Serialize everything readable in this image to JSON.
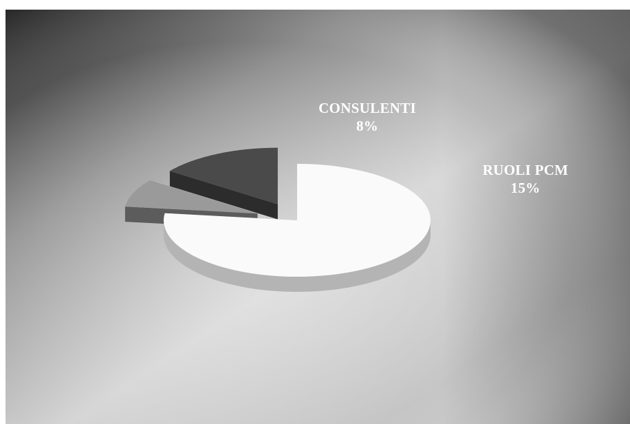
{
  "chart_data": {
    "type": "pie",
    "style": "3d-exploded",
    "slices": [
      {
        "name": "",
        "value": 77,
        "color": "#fafafa",
        "exploded": false
      },
      {
        "name": "CONSULENTI",
        "value": 8,
        "label": "8%",
        "color": "#9a9a9a",
        "exploded": true
      },
      {
        "name": "RUOLI PCM",
        "value": 15,
        "label": "15%",
        "color": "#4a4a4a",
        "exploded": true
      }
    ],
    "legend": "none",
    "background": "gray-gradient"
  }
}
